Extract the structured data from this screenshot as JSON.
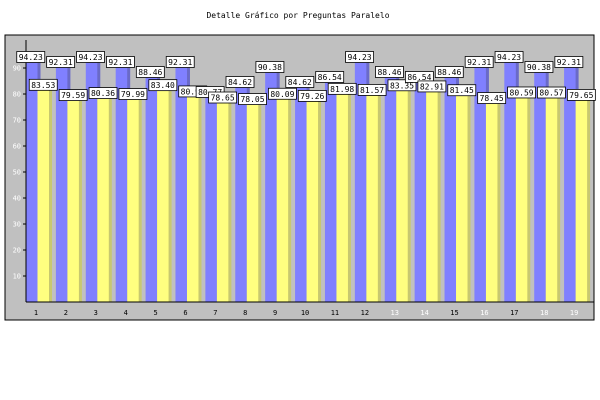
{
  "chart_data": {
    "type": "bar",
    "title": "Detalle Gráfico por Preguntas Paralelo",
    "xlabel": "",
    "ylabel": "",
    "ylim": [
      0,
      100
    ],
    "yticks": [
      10,
      20,
      30,
      40,
      50,
      60,
      70,
      80,
      90
    ],
    "grid": false,
    "categories": [
      "1",
      "2",
      "3",
      "4",
      "5",
      "6",
      "7",
      "8",
      "9",
      "10",
      "11",
      "12",
      "13",
      "14",
      "15",
      "16",
      "17",
      "18",
      "19"
    ],
    "category_label_colors": [
      "#000000",
      "#000000",
      "#000000",
      "#000000",
      "#000000",
      "#000000",
      "#000000",
      "#000000",
      "#000000",
      "#000000",
      "#000000",
      "#000000",
      "#ffffff",
      "#ffffff",
      "#000000",
      "#ffffff",
      "#000000",
      "#ffffff",
      "#ffffff"
    ],
    "series": [
      {
        "color": "#8080ff",
        "values": [
          94.23,
          92.31,
          94.23,
          92.31,
          88.46,
          92.31,
          80.77,
          84.62,
          90.38,
          84.62,
          86.54,
          94.23,
          88.46,
          86.54,
          88.46,
          92.31,
          94.23,
          90.38,
          92.31
        ]
      },
      {
        "color": "#ffff80",
        "values": [
          83.53,
          79.59,
          80.36,
          79.99,
          83.4,
          80.99,
          78.65,
          78.05,
          80.09,
          79.26,
          81.98,
          81.57,
          83.35,
          82.91,
          81.45,
          78.45,
          80.59,
          80.57,
          79.65
        ]
      }
    ],
    "plot_background": "#c0c0c0"
  }
}
